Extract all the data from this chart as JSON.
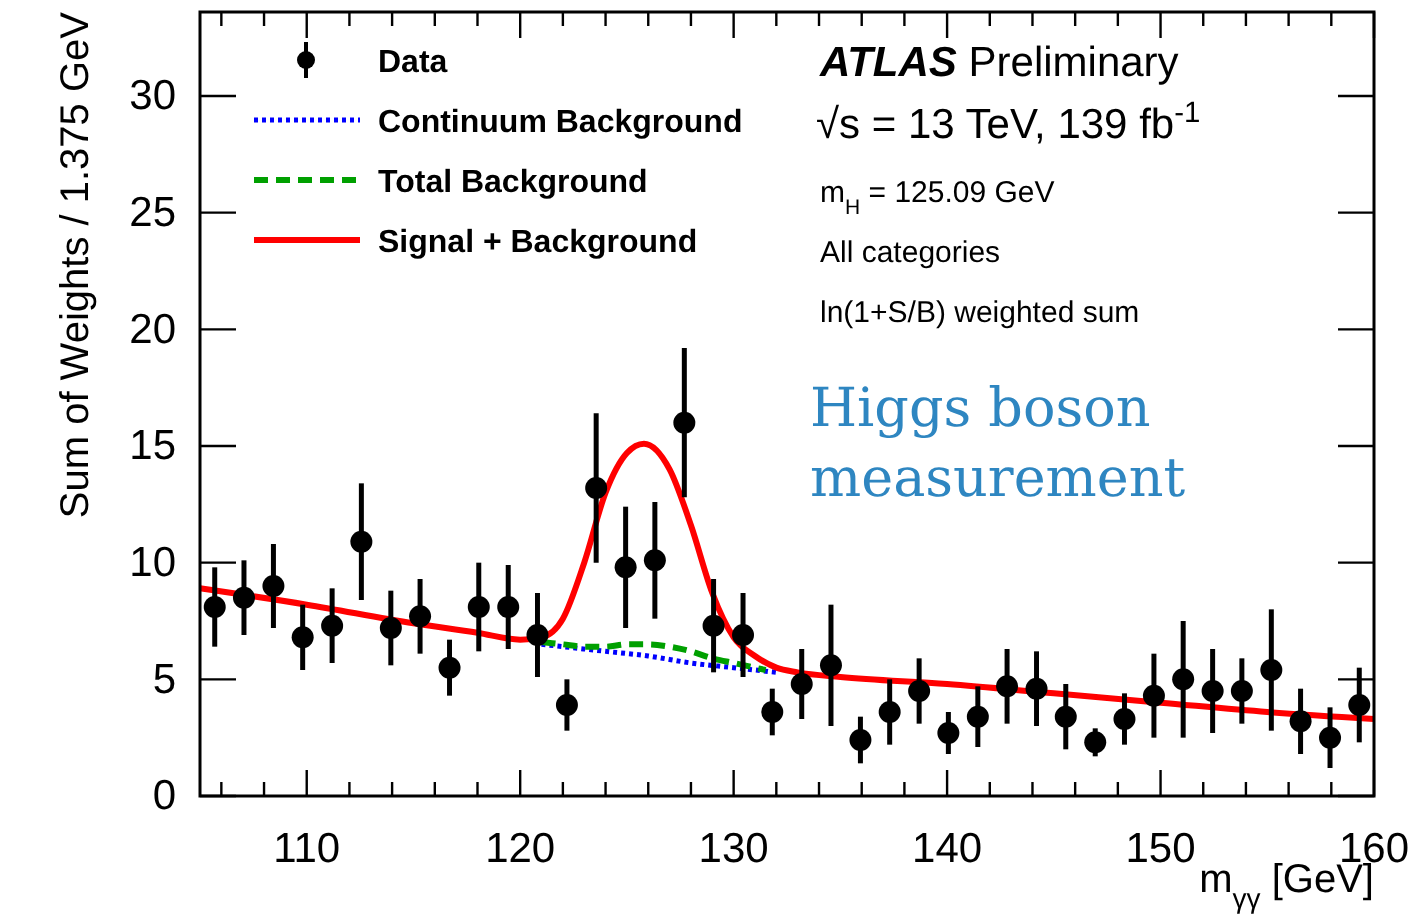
{
  "chart_data": {
    "type": "scatter",
    "xlabel": "m$_{γγ}$ [GeV]",
    "ylabel": "Sum of Weights /  1.375 GeV",
    "xlim": [
      105,
      160
    ],
    "ylim": [
      0,
      33.6
    ],
    "xticks": [
      {
        "value": 106,
        "label": null
      },
      {
        "value": 108,
        "label": null
      },
      110,
      {
        "value": 112,
        "label": null
      },
      {
        "value": 114,
        "label": null
      },
      {
        "value": 116,
        "label": null
      },
      {
        "value": 118,
        "label": null
      },
      120,
      {
        "value": 122,
        "label": null
      },
      {
        "value": 124,
        "label": null
      },
      {
        "value": 126,
        "label": null
      },
      {
        "value": 128,
        "label": null
      },
      130,
      {
        "value": 132,
        "label": null
      },
      {
        "value": 134,
        "label": null
      },
      {
        "value": 136,
        "label": null
      },
      {
        "value": 138,
        "label": null
      },
      140,
      {
        "value": 142,
        "label": null
      },
      {
        "value": 144,
        "label": null
      },
      {
        "value": 146,
        "label": null
      },
      {
        "value": 148,
        "label": null
      },
      150,
      {
        "value": 152,
        "label": null
      },
      {
        "value": 154,
        "label": null
      },
      {
        "value": 156,
        "label": null
      },
      {
        "value": 158,
        "label": null
      },
      160
    ],
    "yticks": [
      0,
      5,
      10,
      15,
      20,
      25,
      30
    ],
    "grid": false,
    "legend": "top left",
    "series": [
      {
        "name": "Data",
        "color": "#000000",
        "marker": "circle",
        "x": [
          105.69,
          107.06,
          108.44,
          109.81,
          111.19,
          112.56,
          113.94,
          115.31,
          116.69,
          118.06,
          119.44,
          120.81,
          122.19,
          123.56,
          124.94,
          126.31,
          127.69,
          129.06,
          130.44,
          131.81,
          133.19,
          134.56,
          135.94,
          137.31,
          138.69,
          140.06,
          141.44,
          142.81,
          144.19,
          145.56,
          146.94,
          148.31,
          149.69,
          151.06,
          152.44,
          153.81,
          155.19,
          156.56,
          157.94,
          159.31
        ],
        "values": [
          8.1,
          8.5,
          9.0,
          6.8,
          7.3,
          10.9,
          7.2,
          7.7,
          5.5,
          8.1,
          8.1,
          6.9,
          3.9,
          13.2,
          9.8,
          10.1,
          16.0,
          7.3,
          6.9,
          3.6,
          4.8,
          5.6,
          2.4,
          3.6,
          4.5,
          2.7,
          3.4,
          4.7,
          4.6,
          3.4,
          2.3,
          3.3,
          4.3,
          5.0,
          4.5,
          4.5,
          5.4,
          3.2,
          2.5,
          3.9
        ],
        "errors": [
          1.7,
          1.6,
          1.8,
          1.4,
          1.6,
          2.5,
          1.6,
          1.6,
          1.2,
          1.9,
          1.8,
          1.8,
          1.1,
          3.2,
          2.6,
          2.5,
          3.2,
          2.0,
          1.8,
          1.0,
          1.5,
          2.6,
          1.0,
          1.4,
          1.4,
          0.9,
          1.3,
          1.6,
          1.6,
          1.4,
          0.6,
          1.1,
          1.8,
          2.5,
          1.8,
          1.4,
          2.6,
          1.4,
          1.3,
          1.6
        ]
      },
      {
        "name": "Continuum Background",
        "type": "line",
        "color": "#0000ff",
        "line_style": "dotted",
        "marker": "none",
        "x": [
          121,
          122,
          124,
          126,
          128,
          130,
          132
        ],
        "values": [
          6.5,
          6.4,
          6.2,
          6.0,
          5.7,
          5.5,
          5.3
        ]
      },
      {
        "name": "Total Background",
        "type": "line",
        "color": "#00a000",
        "line_style": "dashed",
        "marker": "none",
        "x": [
          121,
          122,
          123,
          124,
          125,
          126,
          127,
          128,
          129,
          130,
          131,
          131.5
        ],
        "values": [
          6.6,
          6.5,
          6.4,
          6.4,
          6.5,
          6.5,
          6.4,
          6.2,
          5.9,
          5.7,
          5.5,
          5.4
        ]
      },
      {
        "name": "Signal + Background",
        "type": "line",
        "color": "#ff0000",
        "line_style": "solid",
        "marker": "none",
        "x": [
          105,
          110,
          115,
          118,
          120,
          121,
          122,
          123,
          124,
          125,
          125.8,
          127,
          128,
          129,
          130,
          131,
          132,
          133,
          135,
          140,
          145,
          150,
          155,
          160
        ],
        "values": [
          8.9,
          8.2,
          7.4,
          7.0,
          6.7,
          6.8,
          7.6,
          10.0,
          13.0,
          14.7,
          15.1,
          14.0,
          11.6,
          8.7,
          6.8,
          6.0,
          5.5,
          5.3,
          5.1,
          4.8,
          4.4,
          4.0,
          3.6,
          3.3
        ]
      }
    ],
    "annotations": [
      "ATLAS Preliminary",
      "√s = 13 TeV, 139 fb$^{-1}$",
      "m$_{H}$ = 125.09 GeV",
      "All categories",
      "ln(1+S/B) weighted sum",
      "Higgs boson measurement"
    ]
  }
}
